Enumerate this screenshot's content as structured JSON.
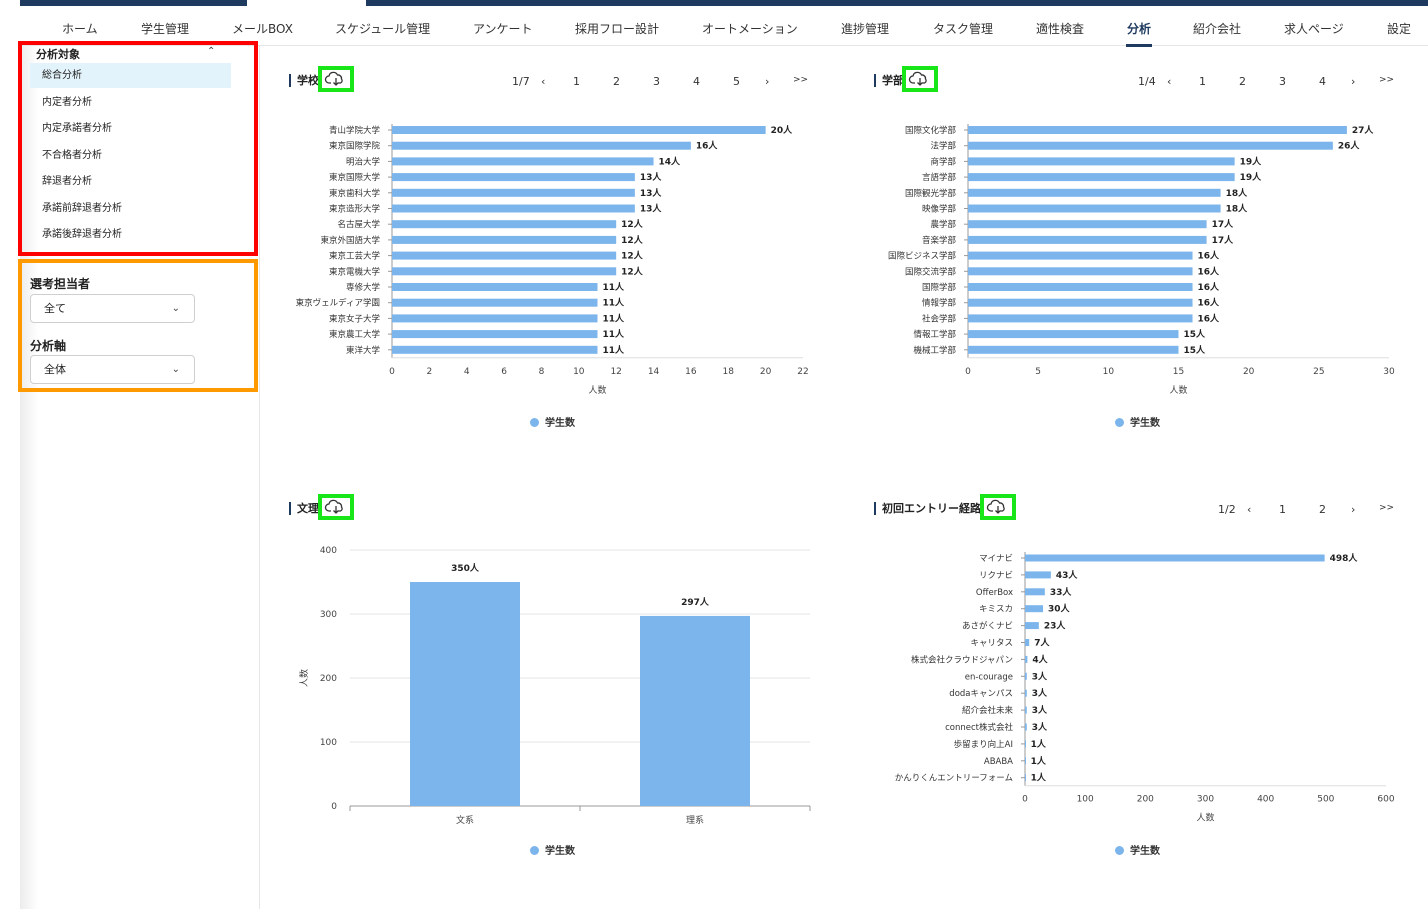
{
  "nav": {
    "items": [
      "ホーム",
      "学生管理",
      "メールBOX",
      "スケジュール管理",
      "アンケート",
      "採用フロー設計",
      "オートメーション",
      "進捗管理",
      "タスク管理",
      "適性検査",
      "分析",
      "紹介会社",
      "求人ページ",
      "設定"
    ],
    "active": "分析"
  },
  "sidebar": {
    "target_title": "分析対象",
    "target_items": [
      "総合分析",
      "内定者分析",
      "内定承諾者分析",
      "不合格者分析",
      "辞退者分析",
      "承諾前辞退者分析",
      "承諾後辞退者分析"
    ],
    "selector_title": "選考担当者",
    "selector_value": "全て",
    "axis_title": "分析軸",
    "axis_value": "全体"
  },
  "legend_label": "学生数",
  "colors": {
    "bar": "#7cb5ec",
    "nav_accent": "#1f3a5f",
    "highlight_red": "#ff0000",
    "highlight_orange": "#ff9900",
    "highlight_green": "#19e619"
  },
  "icons": {
    "download": "cloud-download-icon"
  },
  "pagers": {
    "school": {
      "status": "1/7",
      "pages": [
        "1",
        "2",
        "3",
        "4",
        "5"
      ],
      "last": ">>"
    },
    "faculty": {
      "status": "1/4",
      "pages": [
        "1",
        "2",
        "3",
        "4"
      ],
      "last": ">>"
    },
    "entry": {
      "status": "1/2",
      "pages": [
        "1",
        "2"
      ],
      "last": ">>"
    }
  },
  "chart_data": [
    {
      "type": "bar",
      "orientation": "horizontal",
      "title": "学校",
      "categories": [
        "青山学院大学",
        "東京国際学院",
        "明治大学",
        "東京国際大学",
        "東京歯科大学",
        "東京造形大学",
        "名古屋大学",
        "東京外国語大学",
        "東京工芸大学",
        "東京電機大学",
        "専修大学",
        "東京ヴェルディア学園",
        "東京女子大学",
        "東京農工大学",
        "東洋大学"
      ],
      "values": [
        20,
        16,
        14,
        13,
        13,
        13,
        12,
        12,
        12,
        12,
        11,
        11,
        11,
        11,
        11
      ],
      "data_labels": [
        "20人",
        "16人",
        "14人",
        "13人",
        "13人",
        "13人",
        "12人",
        "12人",
        "12人",
        "12人",
        "11人",
        "11人",
        "11人",
        "11人",
        "11人"
      ],
      "xlabel": "人数",
      "xlim": [
        0,
        22
      ],
      "ticks": [
        0,
        2,
        4,
        6,
        8,
        10,
        12,
        14,
        16,
        18,
        20,
        22
      ],
      "series_name": "学生数"
    },
    {
      "type": "bar",
      "orientation": "horizontal",
      "title": "学部",
      "categories": [
        "国際文化学部",
        "法学部",
        "商学部",
        "言語学部",
        "国際観光学部",
        "映像学部",
        "農学部",
        "音楽学部",
        "国際ビジネス学部",
        "国際交流学部",
        "国際学部",
        "情報学部",
        "社会学部",
        "情報工学部",
        "機械工学部"
      ],
      "values": [
        27,
        26,
        19,
        19,
        18,
        18,
        17,
        17,
        16,
        16,
        16,
        16,
        16,
        15,
        15
      ],
      "data_labels": [
        "27人",
        "26人",
        "19人",
        "19人",
        "18人",
        "18人",
        "17人",
        "17人",
        "16人",
        "16人",
        "16人",
        "16人",
        "16人",
        "15人",
        "15人"
      ],
      "xlabel": "人数",
      "xlim": [
        0,
        30
      ],
      "ticks": [
        0,
        5,
        10,
        15,
        20,
        25,
        30
      ],
      "series_name": "学生数"
    },
    {
      "type": "bar",
      "orientation": "vertical",
      "title": "文理",
      "categories": [
        "文系",
        "理系"
      ],
      "values": [
        350,
        297
      ],
      "data_labels": [
        "350人",
        "297人"
      ],
      "ylabel": "人数",
      "ylim": [
        0,
        400
      ],
      "ticks": [
        0,
        100,
        200,
        300,
        400
      ],
      "series_name": "学生数"
    },
    {
      "type": "bar",
      "orientation": "horizontal",
      "title": "初回エントリー経路",
      "categories": [
        "マイナビ",
        "リクナビ",
        "OfferBox",
        "キミスカ",
        "あさがくナビ",
        "キャリタス",
        "株式会社クラウドジャパン",
        "en-courage",
        "dodaキャンパス",
        "紹介会社未来",
        "connect株式会社",
        "歩留まり向上AI",
        "ABABA",
        "かんりくんエントリーフォーム"
      ],
      "values": [
        498,
        43,
        33,
        30,
        23,
        7,
        4,
        3,
        3,
        3,
        3,
        1,
        1,
        1
      ],
      "data_labels": [
        "498人",
        "43人",
        "33人",
        "30人",
        "23人",
        "7人",
        "4人",
        "3人",
        "3人",
        "3人",
        "3人",
        "1人",
        "1人",
        "1人"
      ],
      "xlabel": "人数",
      "xlim": [
        0,
        600
      ],
      "ticks": [
        0,
        100,
        200,
        300,
        400,
        500,
        600
      ],
      "series_name": "学生数"
    }
  ]
}
